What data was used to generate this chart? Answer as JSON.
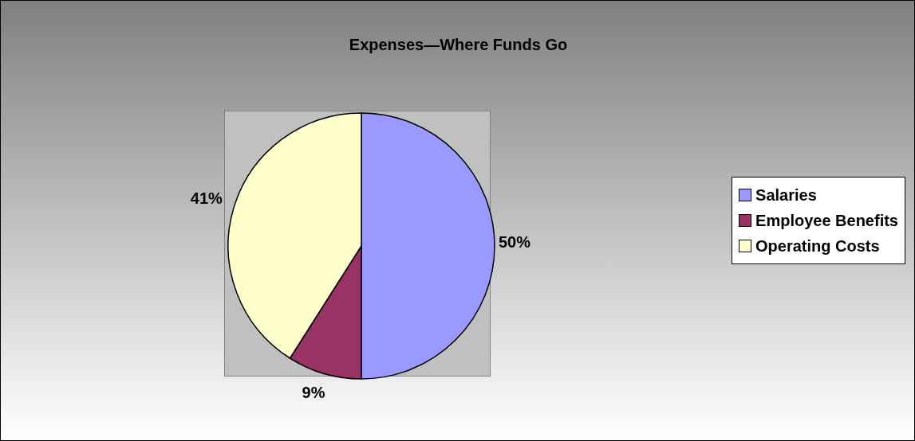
{
  "chart_data": {
    "type": "pie",
    "title": "Expenses—Where Funds Go",
    "categories": [
      "Salaries",
      "Employee Benefits",
      "Operating Costs"
    ],
    "values": [
      50,
      9,
      41
    ],
    "colors": [
      "#9999ff",
      "#993366",
      "#ffffcc"
    ],
    "value_labels": [
      "50%",
      "9%",
      "41%"
    ],
    "legend": "right"
  }
}
